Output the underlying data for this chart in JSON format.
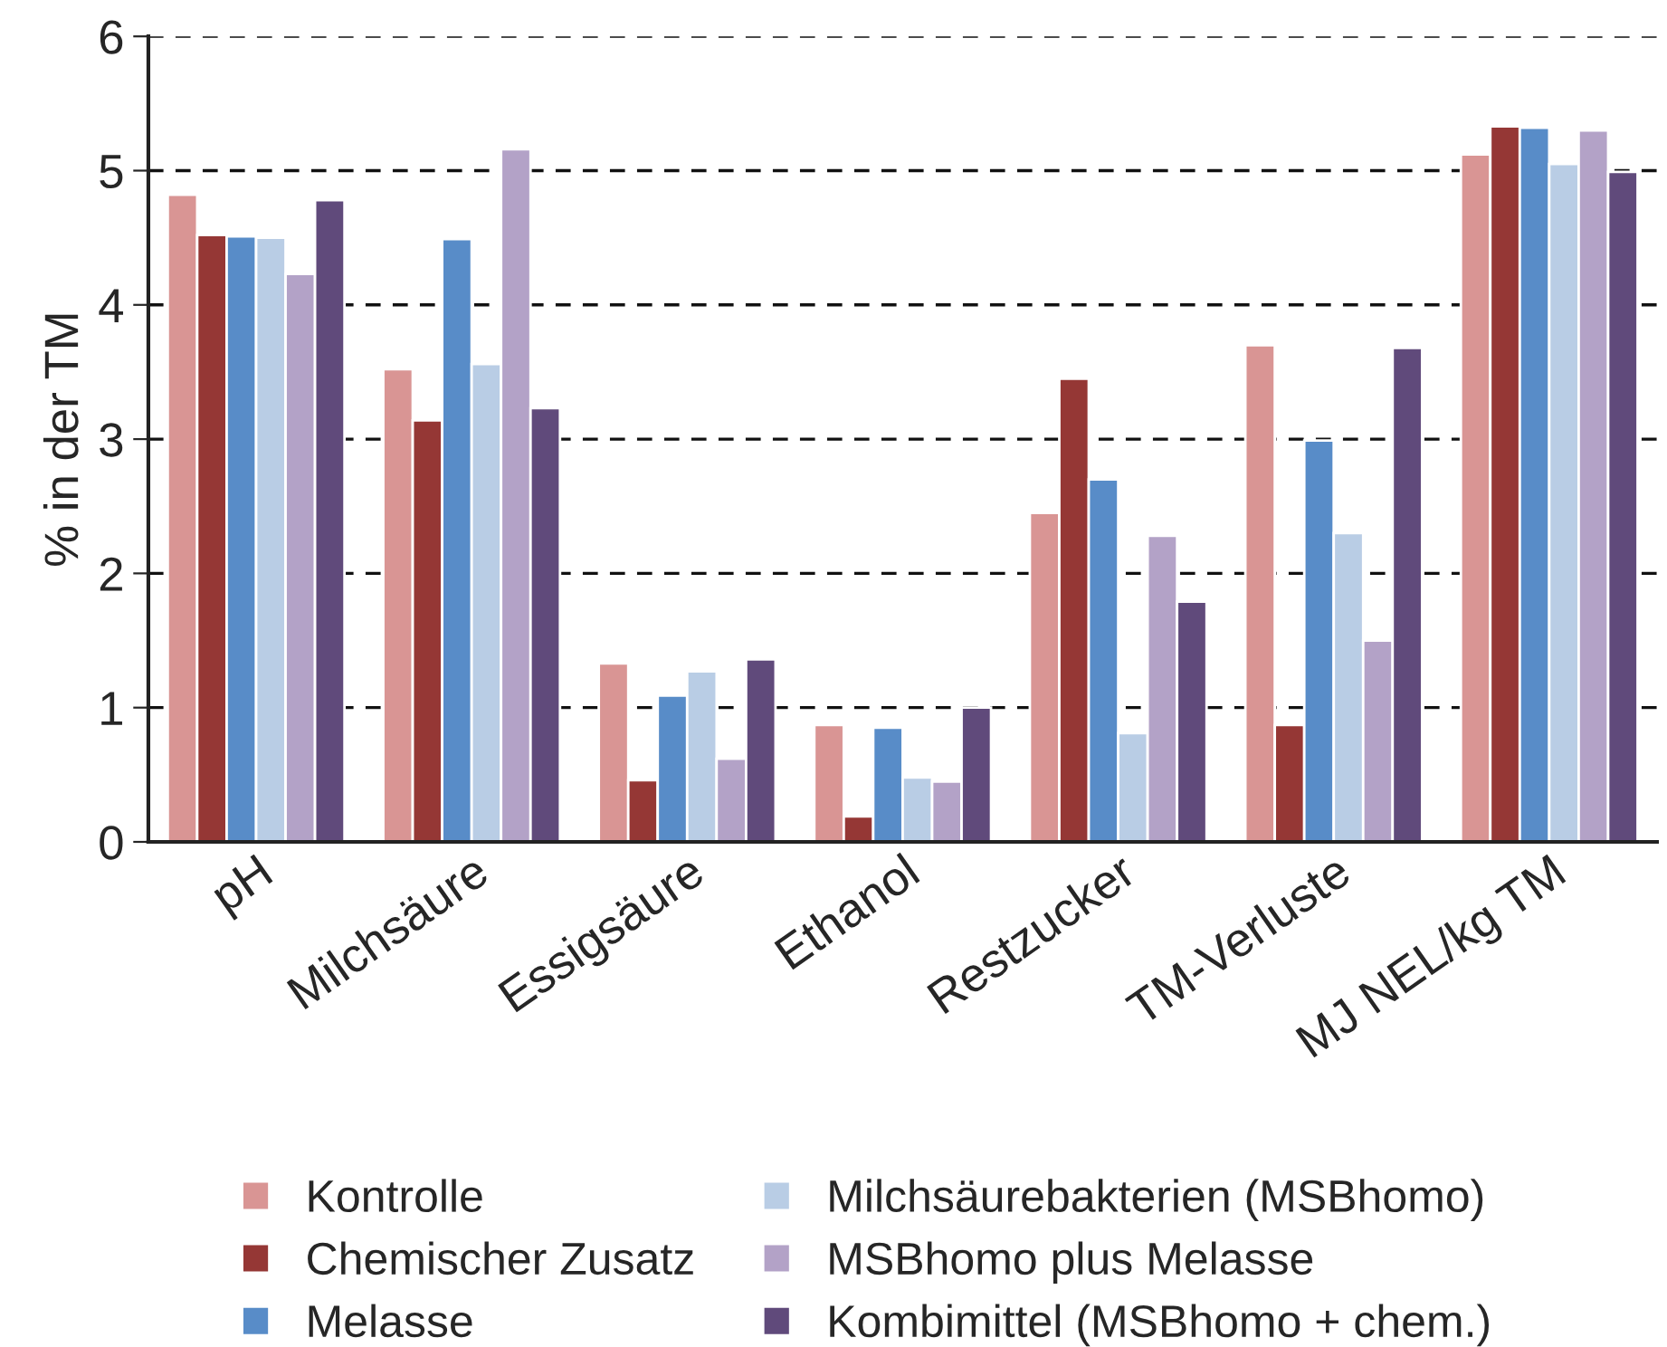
{
  "chart_data": {
    "type": "bar",
    "ylabel": "% in der TM",
    "categories": [
      "pH",
      "Milchsäure",
      "Essigsäure",
      "Ethanol",
      "Restzucker",
      "TM-Verluste",
      "MJ NEL/kg TM"
    ],
    "series": [
      {
        "name": "Kontrolle",
        "color": "#d99594",
        "values": [
          4.82,
          3.52,
          1.33,
          0.87,
          2.45,
          3.7,
          5.12
        ]
      },
      {
        "name": "Chemischer Zusatz",
        "color": "#953735",
        "values": [
          4.52,
          3.14,
          0.46,
          0.19,
          3.45,
          0.87,
          5.33
        ]
      },
      {
        "name": "Melasse",
        "color": "#588cc8",
        "values": [
          4.51,
          4.49,
          1.09,
          0.85,
          2.7,
          2.99,
          5.32
        ]
      },
      {
        "name": "Milchsäurebakterien (MSBhomo)",
        "color": "#b9cde5",
        "values": [
          4.5,
          3.56,
          1.27,
          0.48,
          0.81,
          2.3,
          5.05
        ]
      },
      {
        "name": "MSBhomo plus Melasse",
        "color": "#b3a2c7",
        "values": [
          4.23,
          5.16,
          0.62,
          0.45,
          2.28,
          1.5,
          5.3
        ]
      },
      {
        "name": "Kombimittel (MSBhomo + chem.)",
        "color": "#604a7b",
        "values": [
          4.78,
          3.23,
          1.36,
          1.0,
          1.79,
          3.68,
          4.99
        ]
      }
    ],
    "ylim": [
      0,
      6
    ],
    "yticks": [
      0,
      1,
      2,
      3,
      4,
      5,
      6
    ],
    "grid": "y",
    "legend": "bottom"
  }
}
